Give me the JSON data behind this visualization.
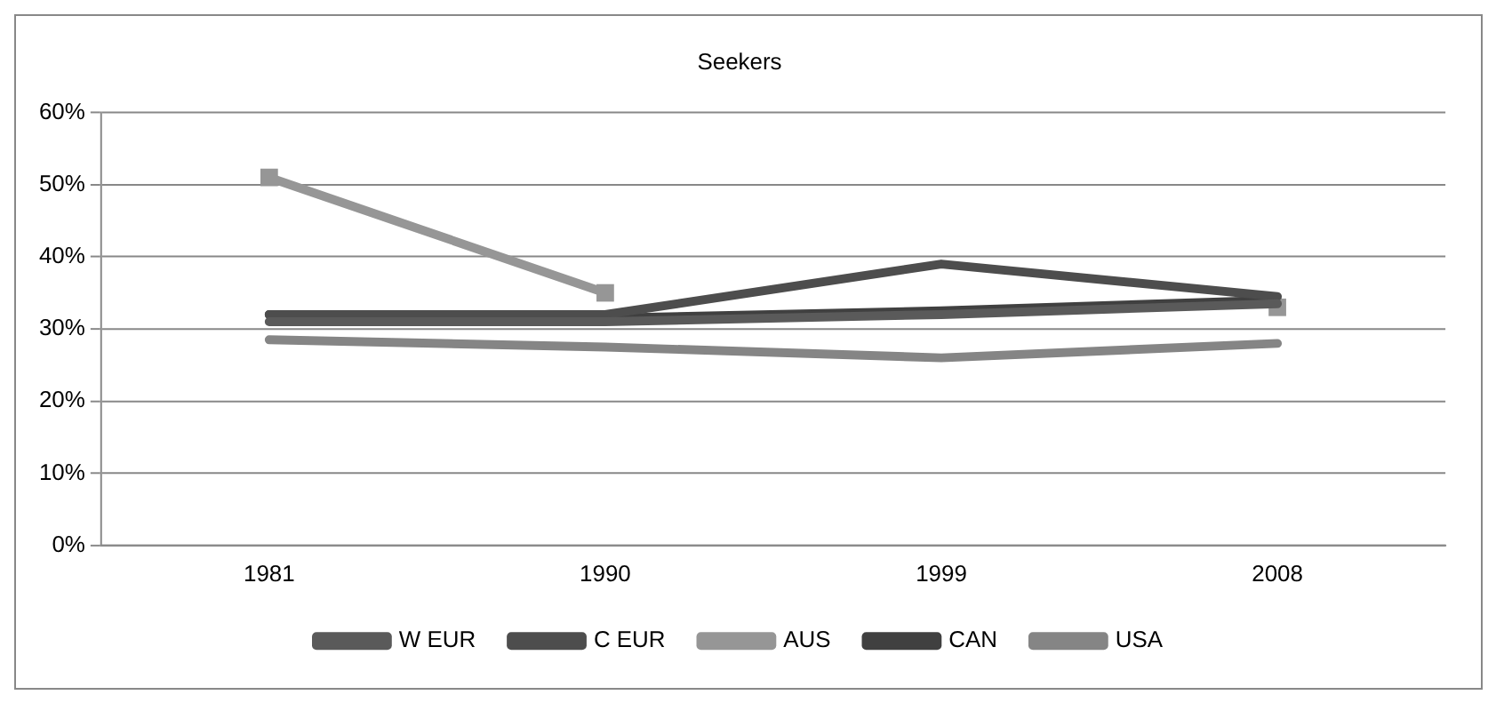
{
  "chart_data": {
    "type": "line",
    "title": "Seekers",
    "categories": [
      "1981",
      "1990",
      "1999",
      "2008"
    ],
    "series": [
      {
        "name": "W EUR",
        "color": "#5a5a5a",
        "values": [
          31,
          31,
          32,
          33.5
        ],
        "marker": "none"
      },
      {
        "name": "C EUR",
        "color": "#4d4d4d",
        "values": [
          32,
          32,
          39,
          34.5
        ],
        "marker": "none"
      },
      {
        "name": "AUS",
        "color": "#969696",
        "values": [
          51,
          35,
          null,
          33
        ],
        "marker": "square"
      },
      {
        "name": "CAN",
        "color": "#404040",
        "values": [
          32,
          31.5,
          32.5,
          34
        ],
        "marker": "none"
      },
      {
        "name": "USA",
        "color": "#858585",
        "values": [
          28.5,
          27.5,
          26,
          28
        ],
        "marker": "none"
      }
    ],
    "ylim": [
      0,
      60
    ],
    "yticks": [
      {
        "value": 0,
        "label": "0%"
      },
      {
        "value": 10,
        "label": "10%"
      },
      {
        "value": 20,
        "label": "20%"
      },
      {
        "value": 30,
        "label": "30%"
      },
      {
        "value": 40,
        "label": "40%"
      },
      {
        "value": 50,
        "label": "50%"
      },
      {
        "value": 60,
        "label": "60%"
      }
    ],
    "grid": "y",
    "legend": "bottom",
    "line_style": "solid"
  }
}
